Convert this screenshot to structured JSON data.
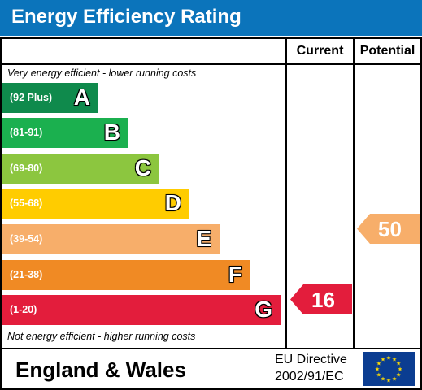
{
  "header": {
    "title": "Energy Efficiency Rating"
  },
  "columns": {
    "current": "Current",
    "potential": "Potential"
  },
  "captions": {
    "top": "Very energy efficient - lower running costs",
    "bottom": "Not energy efficient - higher running costs"
  },
  "bands": [
    {
      "range": "(92 Plus)",
      "letter": "A",
      "color": "#0f8a4c"
    },
    {
      "range": "(81-91)",
      "letter": "B",
      "color": "#1bb04f"
    },
    {
      "range": "(69-80)",
      "letter": "C",
      "color": "#8cc63f"
    },
    {
      "range": "(55-68)",
      "letter": "D",
      "color": "#ffcc00"
    },
    {
      "range": "(39-54)",
      "letter": "E",
      "color": "#f7ae6a"
    },
    {
      "range": "(21-38)",
      "letter": "F",
      "color": "#f08a24"
    },
    {
      "range": "(1-20)",
      "letter": "G",
      "color": "#e31d3c"
    }
  ],
  "ratings": {
    "current": {
      "value": "16",
      "band": "G",
      "color": "#e31d3c"
    },
    "potential": {
      "value": "50",
      "band": "E",
      "color": "#f7ae6a"
    }
  },
  "footer": {
    "region": "England & Wales",
    "directive_line1": "EU Directive",
    "directive_line2": "2002/91/EC"
  }
}
